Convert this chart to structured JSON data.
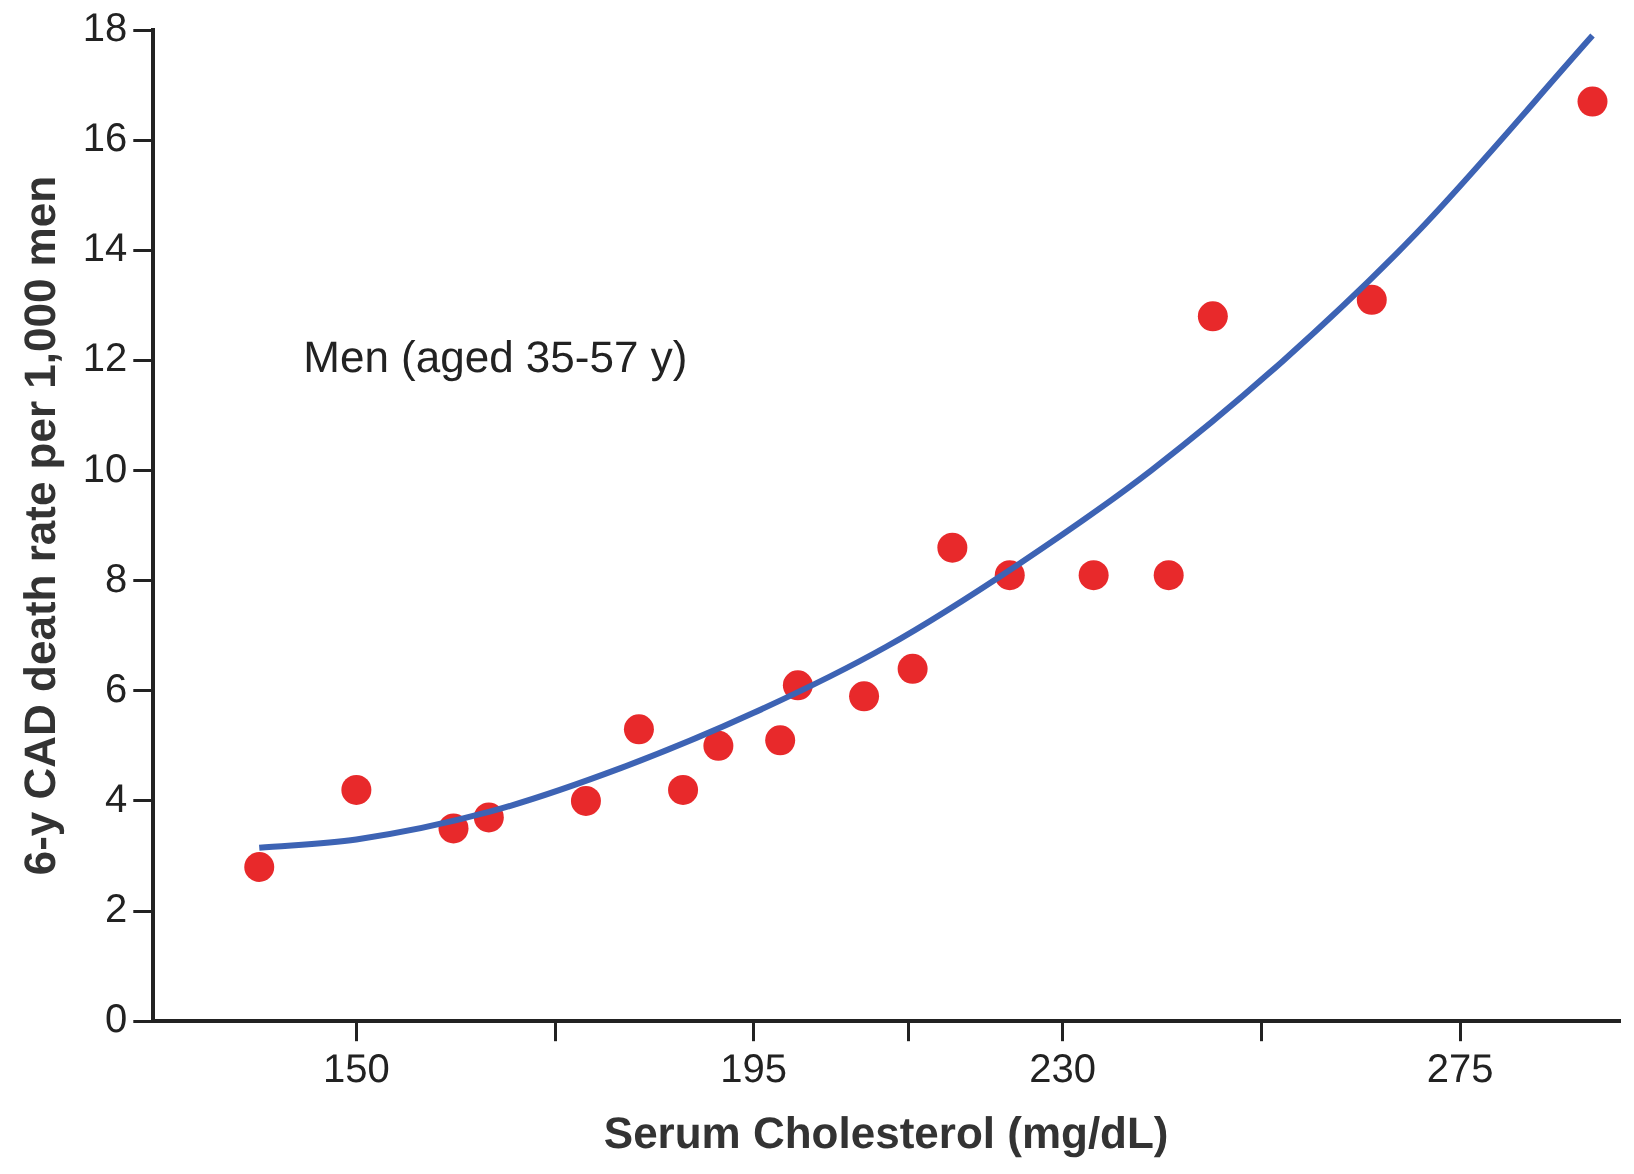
{
  "chart_data": {
    "type": "scatter",
    "xlabel": "Serum Cholesterol (mg/dL)",
    "ylabel": "6-y CAD death rate per 1,000 men",
    "annotations": [
      "Men (aged 35-57 y)"
    ],
    "xlim": [
      127,
      293
    ],
    "xticks": [
      150,
      {
        "value": 172.5,
        "label": null
      },
      195,
      {
        "value": 212.5,
        "label": null
      },
      230,
      {
        "value": 252.5,
        "label": null
      },
      275
    ],
    "ylim": [
      0,
      18
    ],
    "yticks": [
      0,
      2,
      4,
      6,
      8,
      10,
      12,
      14,
      16,
      18
    ],
    "grid": false,
    "legend": false,
    "marker": "circle",
    "series": [
      {
        "color": "#e8292b",
        "x": [
          139,
          150,
          161,
          165,
          176,
          182,
          187,
          191,
          198,
          200,
          207.5,
          213,
          217.5,
          224,
          233.5,
          242,
          247,
          265,
          290
        ],
        "values": [
          2.8,
          4.2,
          3.5,
          3.7,
          4.0,
          5.3,
          4.2,
          5.0,
          5.1,
          6.1,
          5.9,
          6.4,
          8.6,
          8.1,
          8.1,
          8.1,
          12.8,
          13.1,
          16.7
        ]
      },
      {
        "type": "line",
        "color": "#3d63b4",
        "marker": "none",
        "line_style": "solid",
        "x": [
          139,
          150,
          165,
          180,
          195,
          210,
          225,
          240,
          255,
          270,
          290
        ],
        "values": [
          3.15,
          3.3,
          3.8,
          4.6,
          5.6,
          6.8,
          8.3,
          10.0,
          12.0,
          14.3,
          17.9
        ]
      }
    ]
  }
}
